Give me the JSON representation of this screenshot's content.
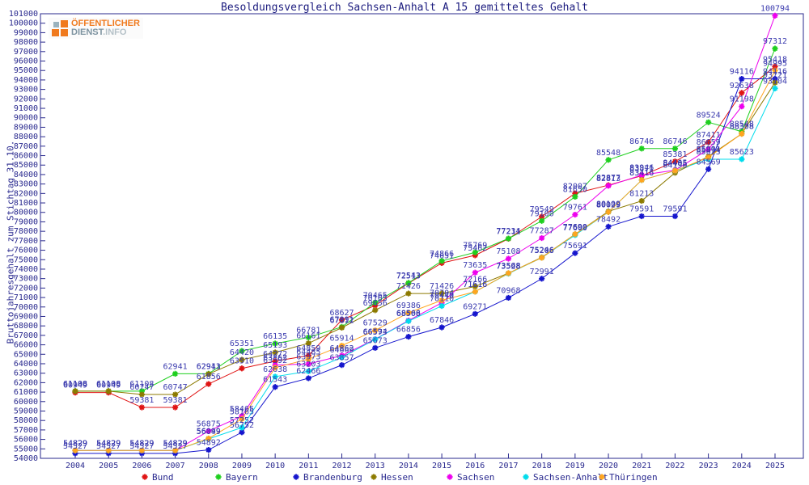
{
  "logo": {
    "line1": "ÖFFENTLICHER",
    "line2_strong": "DIENST",
    "line2_rest": ".INFO",
    "brand_orange": "#f07a1e",
    "brand_gray": "#7d93a0"
  },
  "chart_data": {
    "type": "line",
    "title": "Besoldungsvergleich Sachsen-Anhalt A 15 gemitteltes Gehalt",
    "ylabel": "Bruttojahresgehalt zum Stichtag 31.10.",
    "xlabel": "",
    "ylim": [
      54000,
      101000
    ],
    "ytick_step": 1000,
    "grid": false,
    "legend_position": "bottom",
    "marker": "star",
    "axis_color": "#28288e",
    "value_label_color": "#3a3aae",
    "x": [
      2004,
      2005,
      2006,
      2007,
      2008,
      2009,
      2010,
      2011,
      2012,
      2013,
      2014,
      2015,
      2016,
      2017,
      2018,
      2019,
      2020,
      2021,
      2022,
      2023,
      2024,
      2025
    ],
    "series": [
      {
        "name": "Bund",
        "color": "#e01414",
        "values": [
          60949,
          60949,
          59381,
          59381,
          61856,
          63510,
          64272,
          64859,
          68627,
          70165,
          72513,
          74651,
          75462,
          77211,
          79549,
          82007,
          82877,
          83871,
          85381,
          87411,
          92638,
          95418
        ]
      },
      {
        "name": "Bayern",
        "color": "#1ecf1e",
        "values": [
          61108,
          61108,
          61108,
          62941,
          62941,
          65351,
          66135,
          66781,
          67891,
          70465,
          72543,
          74866,
          75769,
          77234,
          79100,
          81650,
          85548,
          86746,
          86746,
          89524,
          88548,
          97312
        ]
      },
      {
        "name": "Brandenburg",
        "color": "#1515cd",
        "values": [
          54527,
          54527,
          54527,
          54527,
          54892,
          56752,
          61543,
          62466,
          63857,
          65673,
          66856,
          67846,
          69271,
          70968,
          72991,
          75691,
          78492,
          79591,
          79591,
          84569,
          94116,
          94116
        ]
      },
      {
        "name": "Hessen",
        "color": "#8c7a00",
        "values": [
          61108,
          61108,
          60747,
          60747,
          62913,
          64420,
          65193,
          66161,
          67812,
          69656,
          71426,
          71426,
          72166,
          73568,
          75246,
          77690,
          80109,
          81213,
          84190,
          85901,
          88308,
          93721
        ]
      },
      {
        "name": "Sachsen",
        "color": "#ee00ee",
        "values": [
          54829,
          54829,
          54829,
          54829,
          56875,
          58465,
          63862,
          63973,
          64862,
          66594,
          68566,
          70440,
          73635,
          75108,
          77287,
          79761,
          82813,
          83946,
          84465,
          86659,
          91198,
          100794
        ]
      },
      {
        "name": "Sachsen-Anhalt",
        "color": "#00dcec",
        "values": [
          54829,
          54829,
          54829,
          54829,
          56049,
          57252,
          62638,
          63203,
          64669,
          66573,
          68508,
          70110,
          71616,
          73528,
          75206,
          77600,
          80029,
          83416,
          84405,
          85623,
          85623,
          93104
        ]
      },
      {
        "name": "Thüringen",
        "color": "#ffa51e",
        "values": [
          54829,
          54829,
          54829,
          54829,
          56099,
          58165,
          63592,
          64485,
          65914,
          67529,
          69386,
          70704,
          71616,
          73568,
          75206,
          77690,
          80029,
          83416,
          84405,
          85814,
          88308,
          94995
        ]
      }
    ]
  }
}
